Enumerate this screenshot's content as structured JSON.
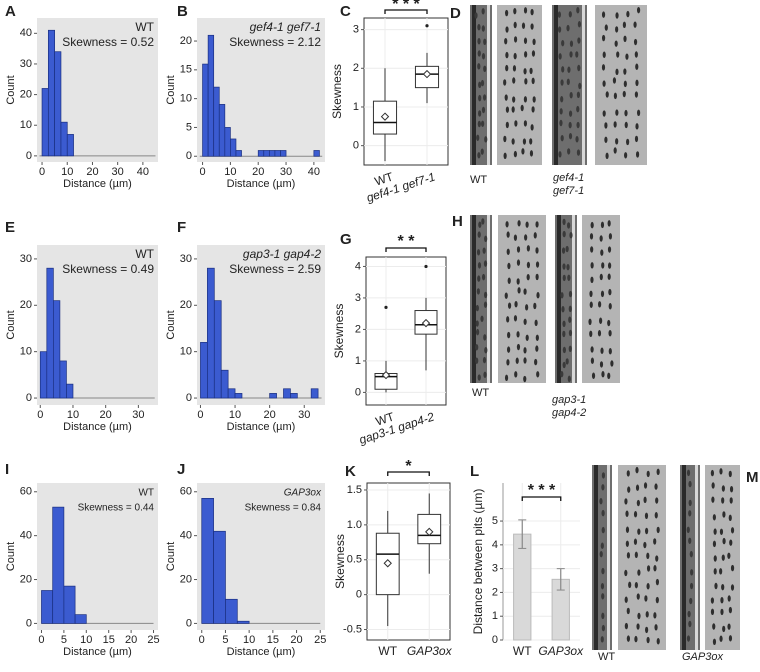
{
  "chart_data": [
    {
      "panel_label": "A",
      "type": "histogram",
      "title": "WT",
      "subtitle": "Skewness = 0.52",
      "xlabel": "Distance (µm)",
      "ylabel": "Count",
      "bins": [
        0,
        2.5,
        5,
        7.5,
        10,
        12.5
      ],
      "values": [
        22,
        41,
        34,
        11,
        7
      ],
      "color": "#3b5bd0",
      "xlim": [
        -2,
        46
      ],
      "ylim": [
        -2,
        45
      ],
      "xticks": [
        0,
        10,
        20,
        30,
        40
      ],
      "yticks": [
        0,
        10,
        20,
        30,
        40
      ]
    },
    {
      "panel_label": "B",
      "type": "histogram",
      "title": "gef4-1 gef7-1",
      "subtitle": "Skewness = 2.12",
      "xlabel": "Distance (µm)",
      "ylabel": "Count",
      "bins": [
        0,
        2,
        4,
        6,
        8,
        10,
        12,
        14,
        16,
        18,
        20,
        22,
        24,
        26,
        28,
        30,
        32,
        34,
        36,
        38,
        40,
        42
      ],
      "values": [
        16,
        21,
        12,
        9,
        5,
        3,
        1,
        0,
        0,
        0,
        1,
        1,
        1,
        1,
        1,
        0,
        0,
        0,
        0,
        0,
        1
      ],
      "color": "#3b5bd0",
      "xlim": [
        -2,
        44
      ],
      "ylim": [
        -1,
        24
      ],
      "xticks": [
        0,
        10,
        20,
        30,
        40
      ],
      "yticks": [
        0,
        5,
        10,
        15,
        20
      ]
    },
    {
      "panel_label": "C",
      "type": "box",
      "ylabel": "Skewness",
      "categories": [
        "WT",
        "gef4-1 gef7-1"
      ],
      "boxes": [
        {
          "min": -0.4,
          "q1": 0.3,
          "median": 0.6,
          "q3": 1.15,
          "max": 2.0,
          "mean": 0.75,
          "outliers": []
        },
        {
          "min": 1.1,
          "q1": 1.5,
          "median": 1.85,
          "q3": 2.05,
          "max": 2.4,
          "mean": 1.85,
          "outliers": [
            3.1
          ]
        }
      ],
      "significance": "* * *",
      "ylim": [
        -0.5,
        3.3
      ],
      "yticks": [
        0,
        1,
        2,
        3
      ],
      "grid": true
    },
    {
      "panel_label": "E",
      "type": "histogram",
      "title": "WT",
      "subtitle": "Skewness = 0.49",
      "xlabel": "Distance (µm)",
      "ylabel": "Count",
      "bins": [
        0,
        2,
        4,
        6,
        8,
        10
      ],
      "values": [
        10,
        28,
        21,
        8,
        3
      ],
      "color": "#3b5bd0",
      "xlim": [
        -1,
        36
      ],
      "ylim": [
        -1.5,
        33
      ],
      "xticks": [
        0,
        10,
        20,
        30
      ],
      "yticks": [
        0,
        10,
        20,
        30
      ]
    },
    {
      "panel_label": "F",
      "type": "histogram",
      "title": "gap3-1 gap4-2",
      "subtitle": "Skewness = 2.59",
      "xlabel": "Distance (µm)",
      "ylabel": "Count",
      "bins": [
        0,
        2,
        4,
        6,
        8,
        10,
        12,
        14,
        16,
        18,
        20,
        22,
        24,
        26,
        28,
        30,
        32,
        34
      ],
      "values": [
        12,
        28,
        21,
        6,
        2,
        1,
        0,
        0,
        0,
        0,
        1,
        0,
        2,
        1,
        0,
        0,
        2
      ],
      "color": "#3b5bd0",
      "xlim": [
        -1,
        36
      ],
      "ylim": [
        -1.5,
        33
      ],
      "xticks": [
        0,
        10,
        20,
        30
      ],
      "yticks": [
        0,
        10,
        20,
        30
      ]
    },
    {
      "panel_label": "G",
      "type": "box",
      "ylabel": "Skewness",
      "categories": [
        "WT",
        "gap3-1 gap4-2"
      ],
      "boxes": [
        {
          "min": 0,
          "q1": 0.1,
          "median": 0.5,
          "q3": 0.6,
          "max": 1.0,
          "mean": 0.55,
          "outliers": [
            2.7
          ]
        },
        {
          "min": 0.7,
          "q1": 1.85,
          "median": 2.15,
          "q3": 2.6,
          "max": 3.0,
          "mean": 2.2,
          "outliers": [
            4.0
          ]
        }
      ],
      "significance": "* *",
      "ylim": [
        -0.4,
        4.3
      ],
      "yticks": [
        0,
        1,
        2,
        3,
        4
      ],
      "grid": true
    },
    {
      "panel_label": "I",
      "type": "histogram",
      "title": "WT",
      "subtitle": "Skewness = 0.44",
      "xlabel": "Distance (µm)",
      "ylabel": "Count",
      "bins": [
        0,
        2.5,
        5,
        7.5,
        10
      ],
      "values": [
        15,
        53,
        17,
        4
      ],
      "color": "#3b5bd0",
      "xlim": [
        -1,
        26
      ],
      "ylim": [
        -3,
        64
      ],
      "xticks": [
        0,
        5,
        10,
        15,
        20,
        25
      ],
      "yticks": [
        0,
        20,
        40,
        60
      ]
    },
    {
      "panel_label": "J",
      "type": "histogram",
      "title": "GAP3ox",
      "subtitle": "Skewness = 0.84",
      "xlabel": "Distance (µm)",
      "ylabel": "Count",
      "bins": [
        0,
        2.5,
        5,
        7.5,
        10
      ],
      "values": [
        57,
        42,
        11,
        1
      ],
      "color": "#3b5bd0",
      "xlim": [
        -1,
        26
      ],
      "ylim": [
        -3,
        64
      ],
      "xticks": [
        0,
        5,
        10,
        15,
        20,
        25
      ],
      "yticks": [
        0,
        20,
        40,
        60
      ]
    },
    {
      "panel_label": "K",
      "type": "box",
      "ylabel": "Skewness",
      "categories": [
        "WT",
        "GAP3ox"
      ],
      "boxes": [
        {
          "min": -0.45,
          "q1": 0,
          "median": 0.58,
          "q3": 0.88,
          "max": 1.2,
          "mean": 0.45,
          "outliers": []
        },
        {
          "min": 0.3,
          "q1": 0.73,
          "median": 0.85,
          "q3": 1.15,
          "max": 1.45,
          "mean": 0.9,
          "outliers": []
        }
      ],
      "significance": "*",
      "ylim": [
        -0.65,
        1.6
      ],
      "yticks": [
        -0.5,
        0,
        0.5,
        {
          "value": 1.0,
          "label": "1.0"
        },
        1.5
      ],
      "grid": true
    },
    {
      "panel_label": "L",
      "type": "bar",
      "ylabel": "Distance between pits (µm)",
      "categories": [
        "WT",
        "GAP3ox"
      ],
      "values": [
        4.45,
        2.55
      ],
      "errors": [
        0.6,
        0.45
      ],
      "color": "#d9d9d9",
      "significance": "* * *",
      "ylim": [
        0,
        6.6
      ],
      "yticks": [
        0,
        1,
        2,
        3,
        4,
        5
      ],
      "grid": true
    }
  ],
  "image_panels": [
    {
      "panel_label": "D",
      "labels": [
        [
          "WT"
        ],
        [
          "gef4-1",
          "gef7-1"
        ]
      ]
    },
    {
      "panel_label": "H",
      "labels": [
        [
          "WT"
        ],
        [
          "gap3-1",
          "gap4-2"
        ]
      ]
    },
    {
      "panel_label": "M",
      "labels": [
        [
          "WT"
        ],
        [
          "GAP3ox"
        ]
      ]
    }
  ]
}
